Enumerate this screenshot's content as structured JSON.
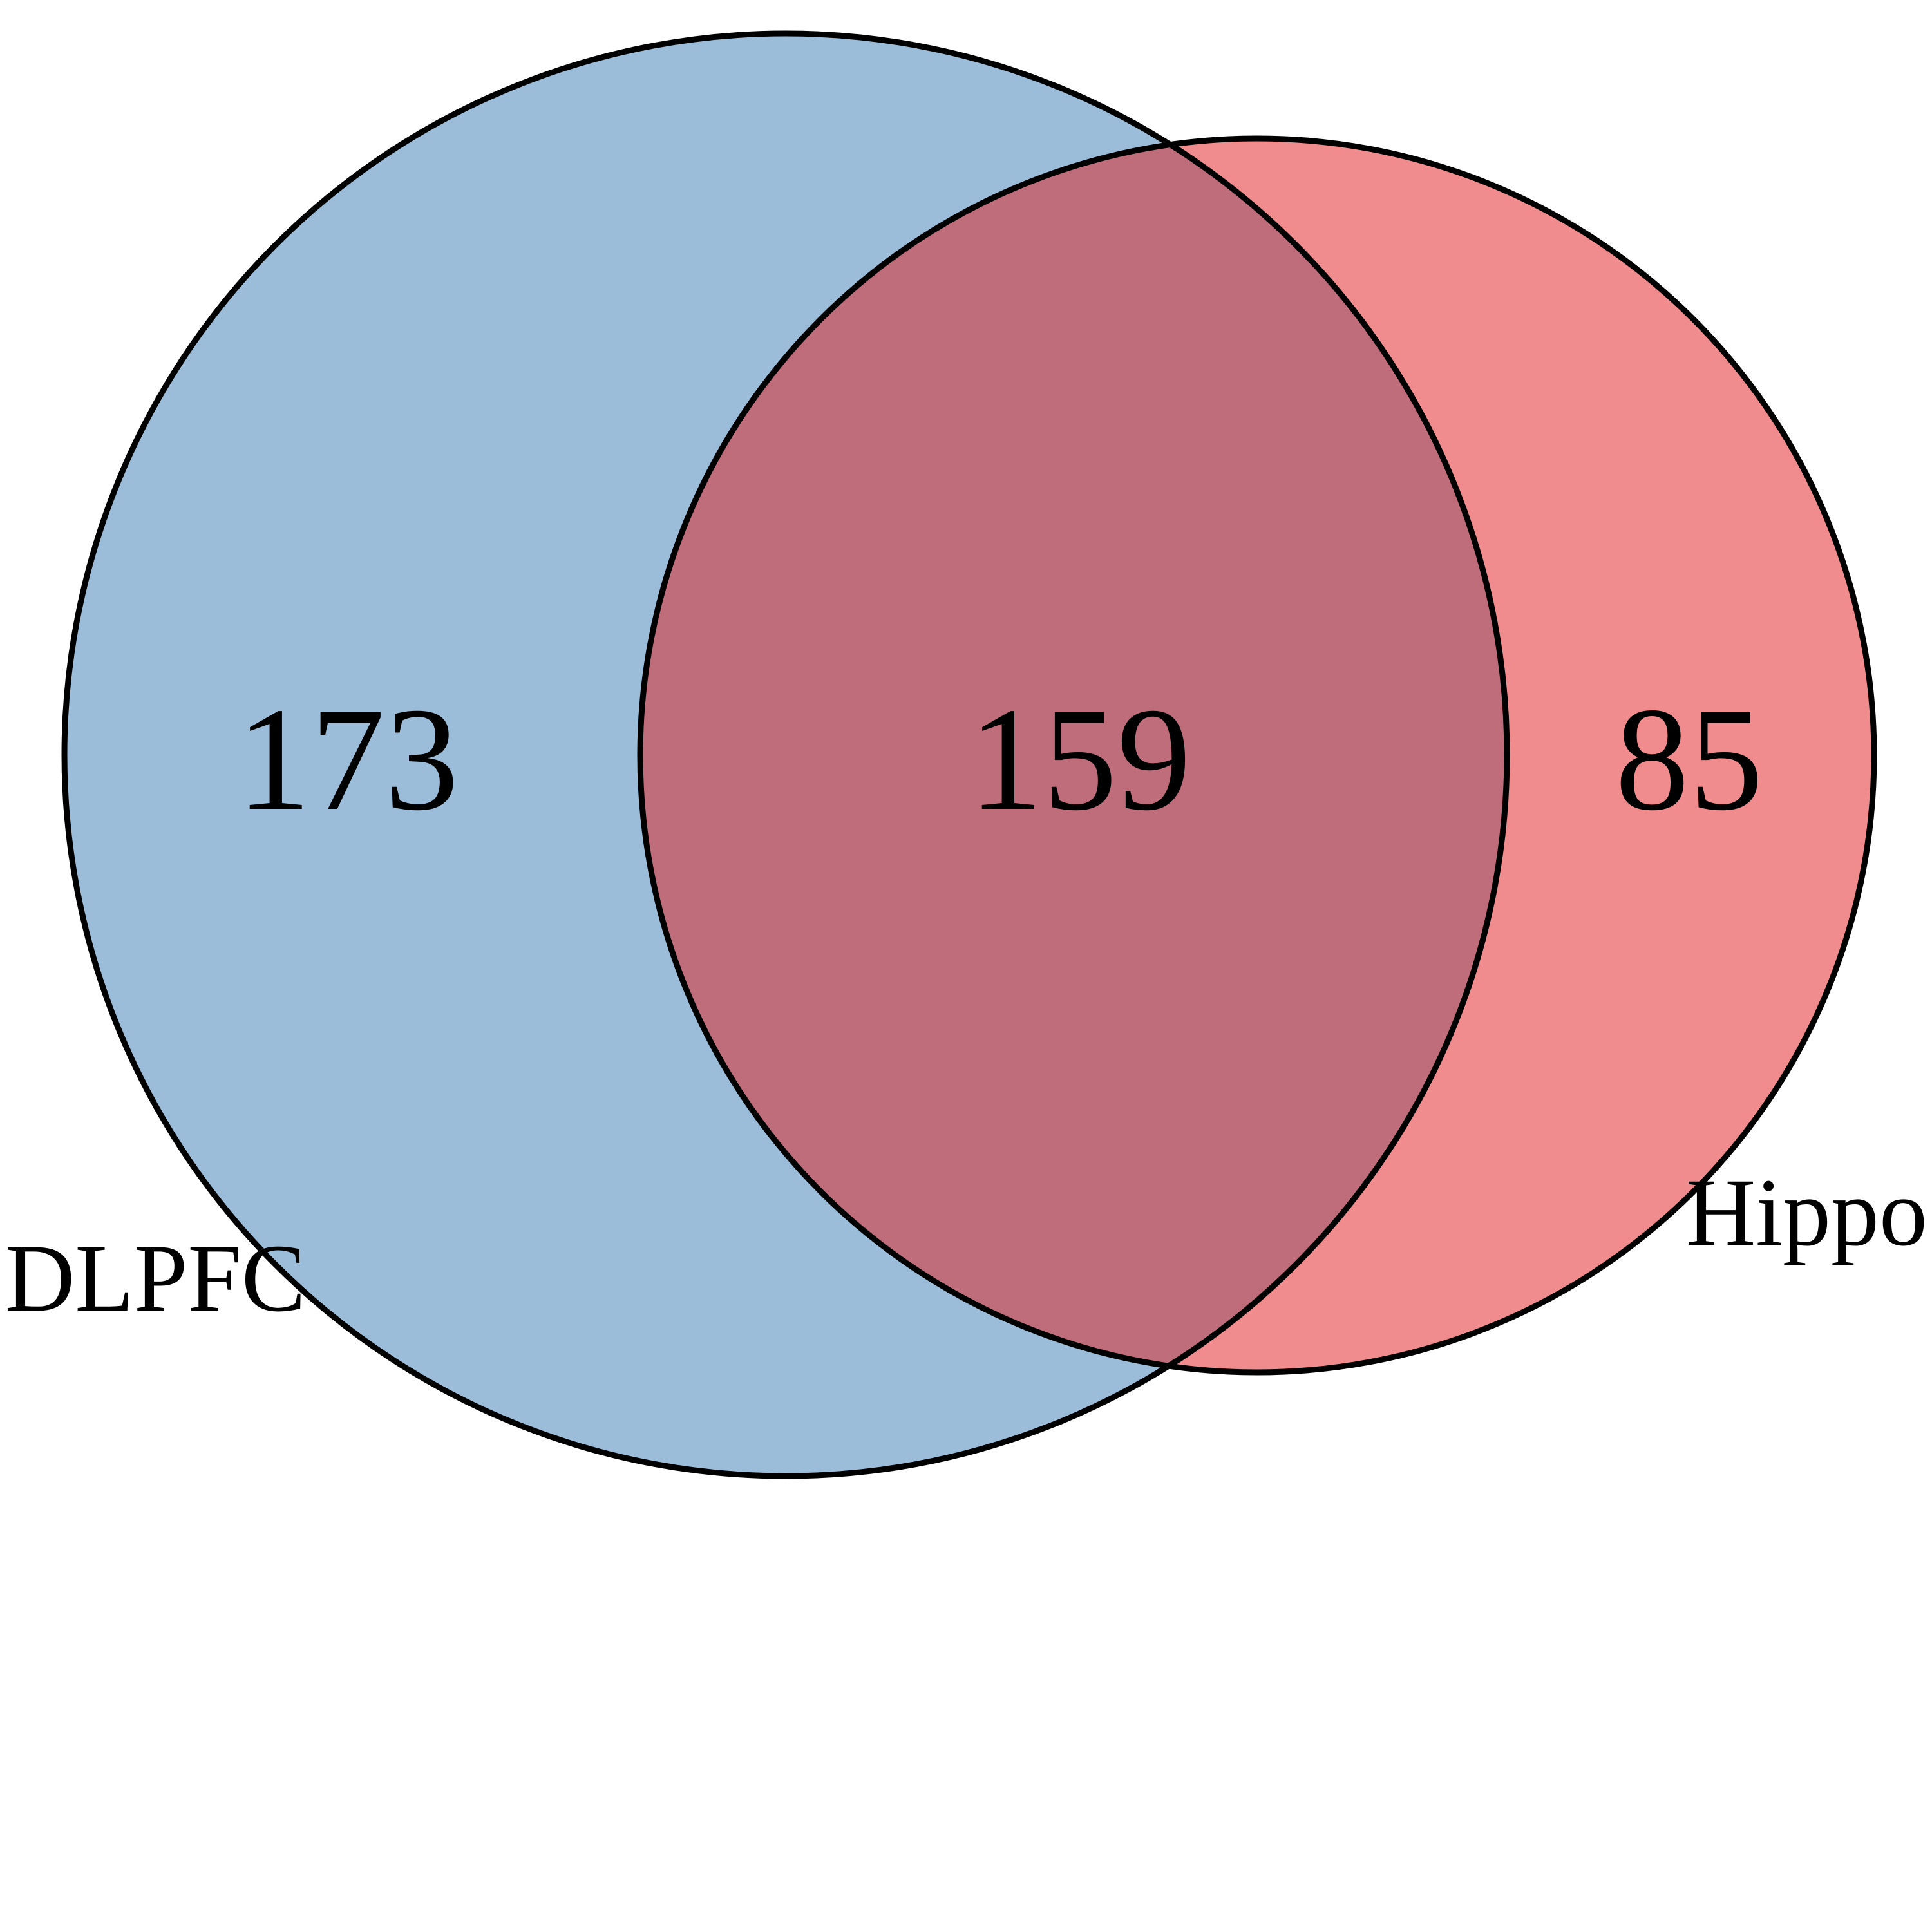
{
  "venn": {
    "sets": [
      {
        "label": "DLPFC",
        "only_count": "173",
        "color": "#9CBDD9"
      },
      {
        "label": "Hippo",
        "only_count": "85",
        "color": "#F08C8E"
      }
    ],
    "intersection": {
      "count": "159",
      "color": "#BF6C7B"
    },
    "outline_color": "#000000"
  }
}
